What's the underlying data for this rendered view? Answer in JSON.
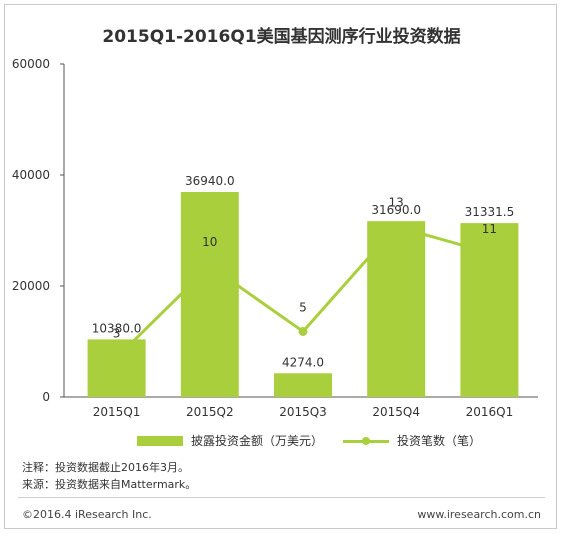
{
  "chart_data": {
    "type": "bar",
    "title": "2015Q1-2016Q1美国基因测序行业投资数据",
    "categories": [
      "2015Q1",
      "2015Q2",
      "2015Q3",
      "2015Q4",
      "2016Q1"
    ],
    "y_axis": {
      "ticks": [
        "0",
        "20000",
        "40000",
        "60000"
      ],
      "ylim": [
        0,
        60000
      ]
    },
    "series": [
      {
        "name": "披露投资金额（万美元）",
        "type": "bar",
        "color": "#a9cf3d",
        "values": [
          10380.0,
          36940.0,
          4274.0,
          31690.0,
          31331.5
        ],
        "labels": [
          "10380.0",
          "36940.0",
          "4274.0",
          "31690.0",
          "31331.5"
        ]
      },
      {
        "name": "投资笔数（笔）",
        "type": "line",
        "color": "#a9cf3d",
        "values": [
          3,
          10,
          5,
          13,
          11
        ],
        "labels": [
          "3",
          "10",
          "5",
          "13",
          "11"
        ]
      }
    ],
    "grid": false,
    "legend_position": "bottom"
  },
  "notes": {
    "line1": "注释：投资数据截止2016年3月。",
    "line2": "来源：投资数据来自Mattermark。"
  },
  "footer": {
    "copyright": "©2016.4 iResearch Inc.",
    "website": "www.iresearch.com.cn"
  }
}
